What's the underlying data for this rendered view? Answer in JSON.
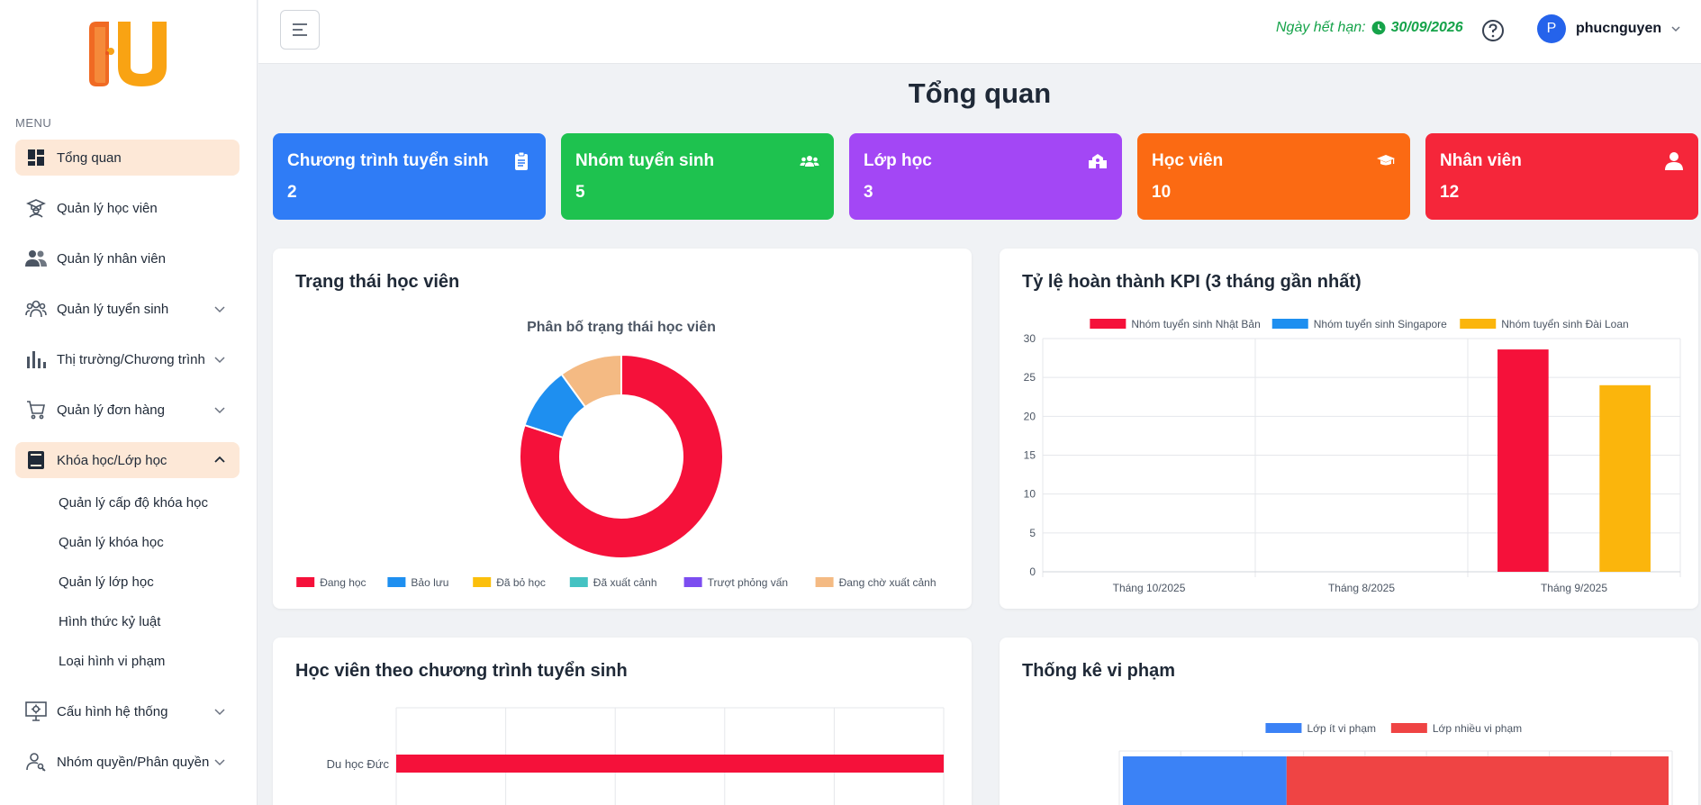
{
  "sidebar": {
    "menu_caption": "MENU",
    "items": [
      {
        "label": "Tổng quan",
        "icon": "dashboard-icon",
        "active": true
      },
      {
        "label": "Quản lý học viên",
        "icon": "graduate-icon"
      },
      {
        "label": "Quản lý nhân viên",
        "icon": "users-icon"
      },
      {
        "label": "Quản lý tuyển sinh",
        "icon": "group-icon",
        "expandable": true
      },
      {
        "label": "Thị trường/Chương trình",
        "icon": "bar-chart-icon",
        "expandable": true
      },
      {
        "label": "Quản lý đơn hàng",
        "icon": "cart-icon",
        "expandable": true
      },
      {
        "label": "Khóa học/Lớp học",
        "icon": "book-icon",
        "expandable": true,
        "expanded": true
      },
      {
        "label": "Cấu hình hệ thống",
        "icon": "settings-monitor-icon",
        "expandable": true
      },
      {
        "label": "Nhóm quyền/Phân quyền",
        "icon": "user-key-icon",
        "expandable": true
      }
    ],
    "sub_items": [
      "Quản lý cấp độ khóa học",
      "Quản lý khóa học",
      "Quản lý lớp học",
      "Hình thức kỷ luật",
      "Loại hình vi phạm"
    ]
  },
  "header": {
    "expiry_label": "Ngày hết hạn:",
    "expiry_date": "30/09/2026",
    "user_initial": "P",
    "username": "phucnguyen"
  },
  "page_title": "Tổng quan",
  "stats": [
    {
      "title": "Chương trình tuyển sinh",
      "value": "2",
      "color": "#2f7cf6",
      "icon": "clipboard-icon"
    },
    {
      "title": "Nhóm tuyển sinh",
      "value": "5",
      "color": "#1ec24f",
      "icon": "group-icon"
    },
    {
      "title": "Lớp học",
      "value": "3",
      "color": "#a347f5",
      "icon": "school-icon"
    },
    {
      "title": "Học viên",
      "value": "10",
      "color": "#fb6a13",
      "icon": "graduation-cap-icon"
    },
    {
      "title": "Nhân viên",
      "value": "12",
      "color": "#f5263a",
      "icon": "user-icon"
    }
  ],
  "cards": {
    "student_status": "Trạng thái học viên",
    "kpi": "Tỷ lệ hoàn thành KPI (3 tháng gần nhất)",
    "by_program": "Học viên theo chương trình tuyển sinh",
    "violations": "Thống kê vi phạm"
  },
  "chart_data": [
    {
      "type": "pie",
      "title": "Phân bố trạng thái học viên",
      "labels": [
        "Đang học",
        "Bảo lưu",
        "Đã bỏ học",
        "Đã xuất cảnh",
        "Trượt phỏng vấn",
        "Đang chờ xuất cảnh"
      ],
      "colors": [
        "#f5113a",
        "#1e8ff0",
        "#fbbf0c",
        "#44c2c2",
        "#7c4df0",
        "#f4ba83"
      ],
      "values": [
        8,
        1,
        0,
        0,
        0,
        1
      ],
      "donut": true,
      "legend": "bottom"
    },
    {
      "type": "bar",
      "categories": [
        "Tháng 10/2025",
        "Tháng 8/2025",
        "Tháng 9/2025"
      ],
      "series": [
        {
          "name": "Nhóm tuyển sinh Nhật Bản",
          "color": "#f5113a",
          "values": [
            0,
            0,
            28.6
          ]
        },
        {
          "name": "Nhóm tuyển sinh Singapore",
          "color": "#1e8ff0",
          "values": [
            0,
            0,
            0
          ]
        },
        {
          "name": "Nhóm tuyển sinh Đài Loan",
          "color": "#fbb50c",
          "values": [
            0,
            0,
            24
          ]
        }
      ],
      "ylim": [
        0,
        30
      ],
      "yticks": [
        "0",
        "5",
        "10",
        "15",
        "20",
        "25",
        "30"
      ],
      "legend": "top",
      "grid": true
    },
    {
      "type": "bar",
      "orientation": "horizontal",
      "categories": [
        "Du học Đức"
      ],
      "series": [
        {
          "name": "",
          "color": "#f5113a",
          "values": [
            1
          ]
        }
      ],
      "grid": true
    },
    {
      "type": "bar",
      "orientation": "horizontal",
      "stacked": true,
      "series": [
        {
          "name": "Lớp ít vi phạm",
          "color": "#3b82f6",
          "values": [
            0.3
          ]
        },
        {
          "name": "Lớp nhiều vi phạm",
          "color": "#ef4444",
          "values": [
            0.7
          ]
        }
      ],
      "legend": "top",
      "grid": true
    }
  ]
}
